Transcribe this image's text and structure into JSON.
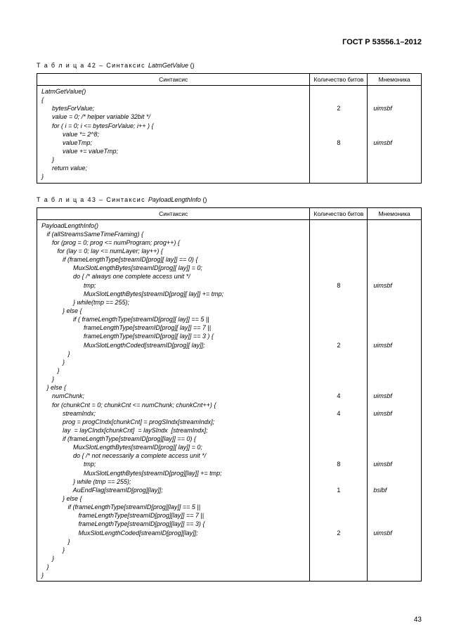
{
  "document": {
    "standard": "ГОСТ Р 53556.1–2012",
    "page_number": "43"
  },
  "table42": {
    "caption_prefix": "Т а б л и ц а  42 – Синтаксис ",
    "function_name": "LatmGetValue",
    "headers": {
      "syntax": "Синтаксис",
      "bits": "Количество битов",
      "mnemonic": "Мнемоника"
    },
    "code": "LatmGetValue()\n{\n      bytesForValue;\n      value = 0; /* helper variable 32bit */\n      for ( i = 0; i <= bytesForValue; i++ ) {\n            value *= 2^8;\n            valueTmp;\n            value += valueTmp;\n      }\n      return value;\n}",
    "bits": "\n\n2\n\n\n\n8\n\n\n\n",
    "mnem": "\n\nuimsbf\n\n\n\nuimsbf\n\n\n\n"
  },
  "table43": {
    "caption_prefix": "Т а б л и ц а  43 – Синтаксис ",
    "function_name": "PayloadLengthInfo",
    "headers": {
      "syntax": "Синтаксис",
      "bits": "Количество битов",
      "mnemonic": "Мнемоника"
    },
    "code": "PayloadLengthInfo()\n   if (allStreamsSameTimeFraming) {\n      for (prog = 0; prog <= numProgram; prog++) {\n         for (lay = 0; lay <= numLayer; lay++) {\n            if (frameLengthType[streamID[prog][ lay]] == 0) {\n                  MuxSlotLengthBytes[streamID[prog][ lay]] = 0;\n                  do { /* always one complete access unit */\n                        tmp;\n                        MuxSlotLengthBytes[streamID[prog][ lay]] += tmp;\n                  } while(tmp == 255);\n            } else {\n                  if ( frameLengthType[streamID[prog][ lay]] == 5 ||\n                        frameLengthType[streamID[prog][ lay]] == 7 ||\n                        frameLengthType[streamID[prog][ lay]] == 3 ) {\n                        MuxSlotLengthCoded[streamID[prog][ lay]];\n               }\n            }\n         }\n      }\n   } else {\n      numChunk;\n      for (chunkCnt = 0; chunkCnt <= numChunk; chunkCnt++) {\n            streamIndx;\n            prog = progCIndx[chunkCnt] = progSIndx[streamIndx];\n            lay  = layCIndx[chunkCnt]  = laySIndx  [streamIndx];\n            if (frameLengthType[streamID[prog][lay]] == 0) {\n                  MuxSlotLengthBytes[streamID[prog][ lay]] = 0;\n                  do { /* not necessarily a complete access unit */\n                        tmp;\n                        MuxSlotLengthBytes[streamID[prog][lay]] += tmp;\n                  } while (tmp == 255);\n                  AuEndFlag[streamID[prog][lay]];\n            } else {\n               if (frameLengthType[streamID[prog][lay]] == 5 ||\n                     frameLengthType[streamID[prog][lay]] == 7 ||\n                     frameLengthType[streamID[prog][lay]] == 3) {\n                     MuxSlotLengthCoded[streamID[prog][lay]];\n               }\n            }\n      }\n   }\n}",
    "bits": "\n\n\n\n\n\n\n8\n\n\n\n\n\n\n2\n\n\n\n\n\n4\n\n4\n\n\n\n\n\n8\n\n\n1\n\n\n\n\n2\n\n\n\n\n",
    "mnem": "\n\n\n\n\n\n\nuimsbf\n\n\n\n\n\n\nuimsbf\n\n\n\n\n\nuimsbf\n\nuimsbf\n\n\n\n\n\nuimsbf\n\n\nbslbf\n\n\n\n\nuimsbf\n\n\n\n\n"
  }
}
